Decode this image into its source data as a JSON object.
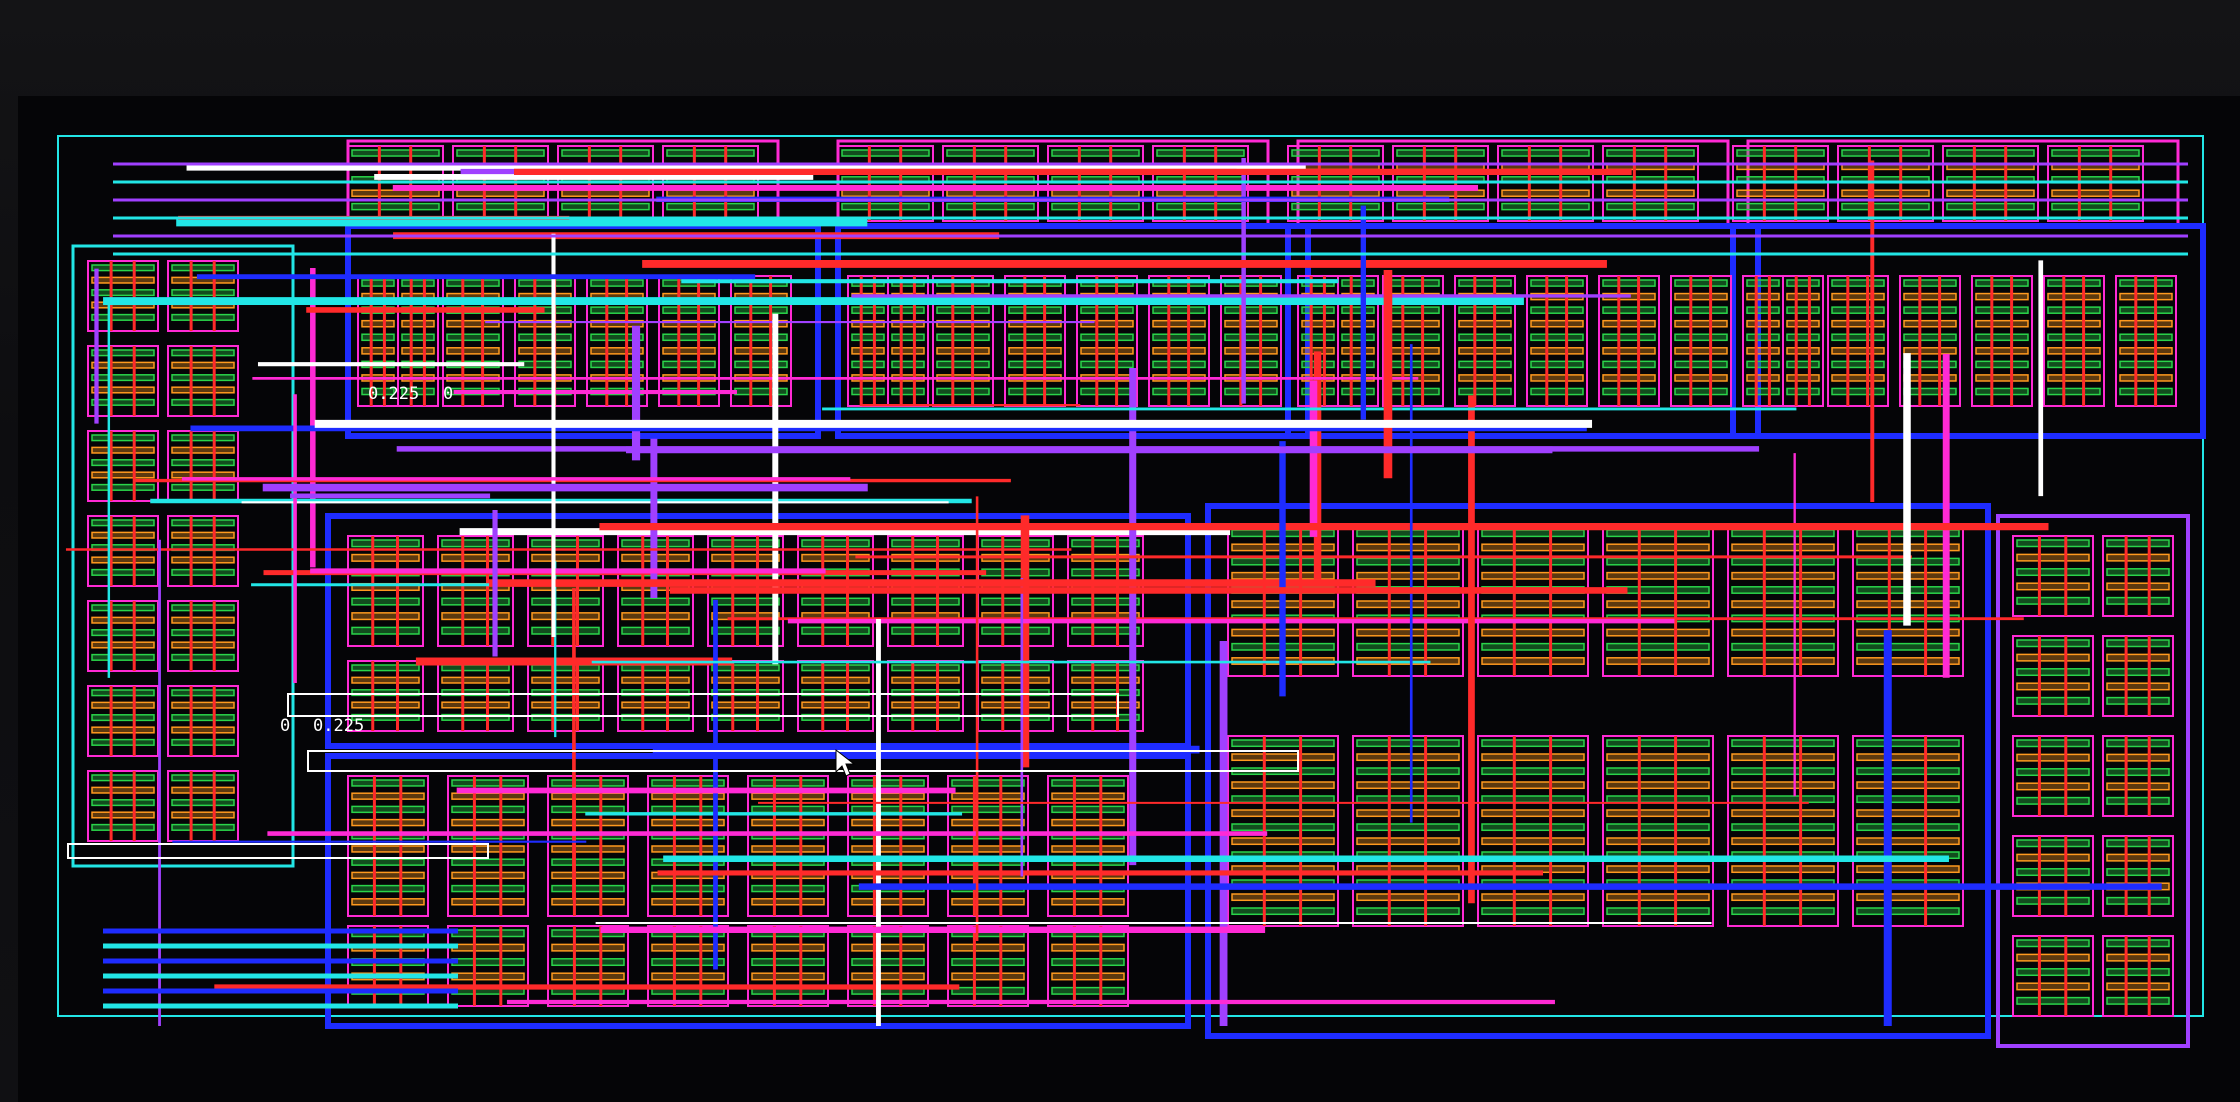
{
  "window": {
    "title": ""
  },
  "annotations": [
    {
      "id": "label-upper",
      "text": "0.225"
    },
    {
      "id": "label-lower",
      "text": "0.225"
    },
    {
      "id": "label-zero-upper",
      "text": "0"
    },
    {
      "id": "label-zero-lower",
      "text": "0"
    }
  ],
  "layers": {
    "metal1": "#ff2a2a",
    "metal2": "#1e2cff",
    "metal3": "#ff2ad4",
    "metal4": "#22e6e6",
    "poly": "#ff9a1f",
    "active": "#2ad44a",
    "nwell": "#a040ff",
    "highlight": "#ffffff"
  },
  "blocks": {
    "top_row": 4,
    "middle_row": 3,
    "bottom_row": 3
  },
  "cursor_icon": "arrow-pointer-icon"
}
